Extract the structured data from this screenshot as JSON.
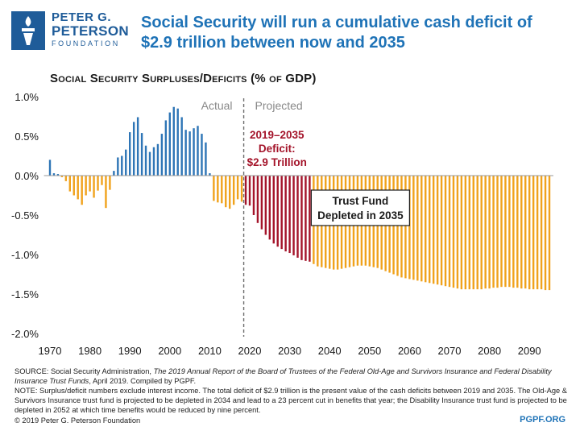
{
  "logo": {
    "line1": "PETER G.",
    "line2": "PETERSON",
    "line3": "FOUNDATION"
  },
  "headline": "Social Security will run a cumulative cash deficit of $2.9 trillion between now and 2035",
  "subtitle": "Social Security Surpluses/Deficits (% of GDP)",
  "colors": {
    "surplus": "#2e75b6",
    "deficit": "#f0a21c",
    "deficit_window": "#a4142a",
    "title": "#1f73b7"
  },
  "chart_data": {
    "type": "bar",
    "title": "Social Security Surpluses/Deficits (% of GDP)",
    "ylim": [
      -2.0,
      1.0
    ],
    "yticks": [
      1.0,
      0.5,
      0.0,
      -0.5,
      -1.0,
      -1.5,
      -2.0
    ],
    "ytick_labels": [
      "1.0%",
      "0.5%",
      "0.0%",
      "-0.5%",
      "-1.0%",
      "-1.5%",
      "-2.0%"
    ],
    "xticks": [
      1970,
      1980,
      1990,
      2000,
      2010,
      2020,
      2030,
      2040,
      2050,
      2060,
      2070,
      2080,
      2090
    ],
    "divider_year": 2018.5,
    "deficit_window": [
      2019,
      2035
    ],
    "region_labels": {
      "actual": "Actual",
      "projected": "Projected"
    },
    "annotations": [
      {
        "text": "2019–2035",
        "color": "#a4142a"
      },
      {
        "text": "Deficit:",
        "color": "#a4142a"
      },
      {
        "text": "$2.9 Trillion",
        "color": "#a4142a"
      }
    ],
    "trust_fund_label": {
      "line1": "Trust Fund",
      "line2": "Depleted in 2035"
    },
    "years": [
      1970,
      1971,
      1972,
      1973,
      1974,
      1975,
      1976,
      1977,
      1978,
      1979,
      1980,
      1981,
      1982,
      1983,
      1984,
      1985,
      1986,
      1987,
      1988,
      1989,
      1990,
      1991,
      1992,
      1993,
      1994,
      1995,
      1996,
      1997,
      1998,
      1999,
      2000,
      2001,
      2002,
      2003,
      2004,
      2005,
      2006,
      2007,
      2008,
      2009,
      2010,
      2011,
      2012,
      2013,
      2014,
      2015,
      2016,
      2017,
      2018,
      2019,
      2020,
      2021,
      2022,
      2023,
      2024,
      2025,
      2026,
      2027,
      2028,
      2029,
      2030,
      2031,
      2032,
      2033,
      2034,
      2035,
      2036,
      2037,
      2038,
      2039,
      2040,
      2041,
      2042,
      2043,
      2044,
      2045,
      2046,
      2047,
      2048,
      2049,
      2050,
      2051,
      2052,
      2053,
      2054,
      2055,
      2056,
      2057,
      2058,
      2059,
      2060,
      2061,
      2062,
      2063,
      2064,
      2065,
      2066,
      2067,
      2068,
      2069,
      2070,
      2071,
      2072,
      2073,
      2074,
      2075,
      2076,
      2077,
      2078,
      2079,
      2080,
      2081,
      2082,
      2083,
      2084,
      2085,
      2086,
      2087,
      2088,
      2089,
      2090,
      2091,
      2092,
      2093,
      2094,
      2095
    ],
    "values": [
      0.2,
      0.03,
      0.02,
      -0.02,
      -0.07,
      -0.2,
      -0.25,
      -0.3,
      -0.37,
      -0.25,
      -0.2,
      -0.28,
      -0.19,
      -0.12,
      -0.41,
      -0.18,
      0.06,
      0.23,
      0.25,
      0.33,
      0.55,
      0.68,
      0.74,
      0.54,
      0.38,
      0.3,
      0.36,
      0.4,
      0.53,
      0.7,
      0.8,
      0.87,
      0.85,
      0.74,
      0.58,
      0.56,
      0.6,
      0.63,
      0.53,
      0.42,
      0.03,
      -0.32,
      -0.34,
      -0.35,
      -0.4,
      -0.42,
      -0.37,
      -0.3,
      -0.33,
      -0.37,
      -0.38,
      -0.5,
      -0.6,
      -0.68,
      -0.75,
      -0.81,
      -0.86,
      -0.9,
      -0.93,
      -0.96,
      -0.98,
      -1.01,
      -1.04,
      -1.07,
      -1.08,
      -1.09,
      -1.12,
      -1.15,
      -1.16,
      -1.17,
      -1.18,
      -1.19,
      -1.19,
      -1.18,
      -1.17,
      -1.16,
      -1.15,
      -1.14,
      -1.14,
      -1.14,
      -1.15,
      -1.16,
      -1.17,
      -1.19,
      -1.21,
      -1.23,
      -1.25,
      -1.27,
      -1.29,
      -1.3,
      -1.31,
      -1.32,
      -1.33,
      -1.34,
      -1.35,
      -1.36,
      -1.37,
      -1.38,
      -1.39,
      -1.4,
      -1.41,
      -1.42,
      -1.43,
      -1.44,
      -1.44,
      -1.44,
      -1.44,
      -1.44,
      -1.44,
      -1.43,
      -1.43,
      -1.42,
      -1.42,
      -1.41,
      -1.41,
      -1.41,
      -1.42,
      -1.42,
      -1.43,
      -1.43,
      -1.44,
      -1.44,
      -1.44,
      -1.44,
      -1.45,
      -1.45
    ]
  },
  "notes": {
    "source_prefix": "SOURCE: Social Security Administration, ",
    "source_title": "The 2019 Annual Report of the Board of Trustees of the Federal Old-Age and Survivors Insurance and Federal Disability Insurance Trust Funds",
    "source_suffix": ", April 2019. Compiled by PGPF.",
    "note": "NOTE: Surplus/deficit numbers exclude interest income. The total deficit of $2.9 trillion is the present value of the cash deficits between 2019 and 2035. The Old-Age & Survivors Insurance trust fund is projected to be depleted in 2034 and lead to a 23 percent cut in benefits that year; the Disability Insurance trust fund is projected to be depleted in 2052 at which time benefits would be reduced by nine percent."
  },
  "footer": {
    "copyright": "© 2019 Peter G. Peterson Foundation",
    "site": "PGPF.ORG"
  }
}
